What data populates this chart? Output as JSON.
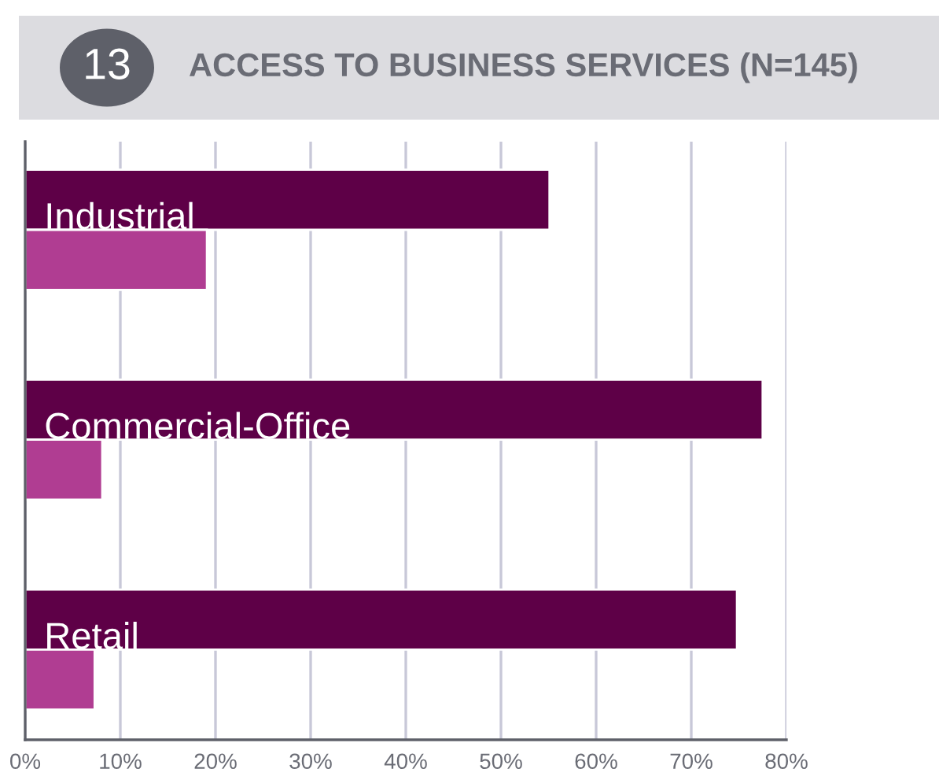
{
  "chart_data": {
    "type": "bar",
    "orientation": "horizontal",
    "title": "ACCESS TO BUSINESS SERVICES (N=145)",
    "annotations": [
      "13"
    ],
    "categories": [
      "Industrial",
      "Commercial-Office",
      "Retail"
    ],
    "series": [
      {
        "color": "#5e0047",
        "values": [
          55.1,
          77.5,
          74.8
        ]
      },
      {
        "color": "#b03d92",
        "values": [
          19.1,
          8.1,
          7.3
        ]
      }
    ],
    "xlim": [
      0,
      80
    ],
    "xticks": [
      {
        "value": 0,
        "label": "0%"
      },
      {
        "value": 10,
        "label": "10%"
      },
      {
        "value": 20,
        "label": "20%"
      },
      {
        "value": 30,
        "label": "30%"
      },
      {
        "value": 40,
        "label": "40%"
      },
      {
        "value": 50,
        "label": "50%"
      },
      {
        "value": 60,
        "label": "60%"
      },
      {
        "value": 70,
        "label": "70%"
      },
      {
        "value": 80,
        "label": "80%"
      }
    ],
    "grid": "x",
    "tick_labels": "x"
  }
}
